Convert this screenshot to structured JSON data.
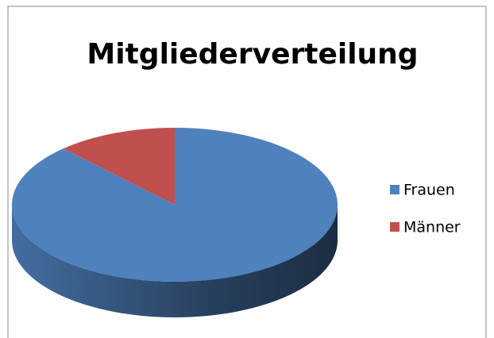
{
  "chart_data": {
    "type": "pie",
    "title": "Mitgliederverteilung",
    "categories": [
      "Frauen",
      "Männer"
    ],
    "values": [
      88,
      12
    ],
    "colors": [
      "#4f81bd",
      "#c0504d"
    ],
    "legend": "right"
  }
}
